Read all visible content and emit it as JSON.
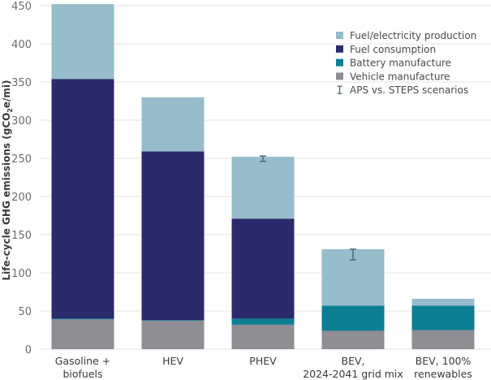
{
  "chart_data": {
    "type": "bar",
    "stacked": true,
    "title": "",
    "xlabel": "",
    "ylabel": "Life-cycle GHG emissions (gCO2e/mi)",
    "ylabel_parts": {
      "pre": "Life-cycle GHG emissions (gCO",
      "sub": "2",
      "post": "e/mi)"
    },
    "ylim": [
      0,
      450
    ],
    "yticks": [
      0,
      50,
      100,
      150,
      200,
      250,
      300,
      350,
      400,
      450
    ],
    "grid": true,
    "legend_position": "top-right",
    "categories": [
      {
        "lines": [
          "Gasoline +",
          "biofuels"
        ]
      },
      {
        "lines": [
          "HEV"
        ]
      },
      {
        "lines": [
          "PHEV"
        ]
      },
      {
        "lines": [
          "BEV,",
          "2024-2041 grid mix"
        ]
      },
      {
        "lines": [
          "BEV, 100%",
          "renewables"
        ]
      }
    ],
    "series": [
      {
        "name": "Vehicle manufacture",
        "color": "#8e8e93",
        "values": [
          39,
          37,
          32,
          24,
          25
        ]
      },
      {
        "name": "Battery manufacture",
        "color": "#0d7f93",
        "values": [
          1,
          1,
          8,
          33,
          32
        ]
      },
      {
        "name": "Fuel consumption",
        "color": "#2a2a6c",
        "values": [
          314,
          221,
          131,
          0,
          0
        ]
      },
      {
        "name": "Fuel/electricity production",
        "color": "#97bccb",
        "values": [
          98,
          71,
          81,
          74,
          9
        ]
      }
    ],
    "error_bars": {
      "name": "APS vs. STEPS scenarios",
      "color": "#4a6a78",
      "ranges": [
        null,
        null,
        [
          246,
          253
        ],
        [
          117,
          131
        ],
        null
      ]
    },
    "legend": [
      {
        "label": "Fuel/electricity production",
        "color": "#97bccb",
        "kind": "square"
      },
      {
        "label": "Fuel consumption",
        "color": "#2a2a6c",
        "kind": "square"
      },
      {
        "label": "Battery manufacture",
        "color": "#0d7f93",
        "kind": "square"
      },
      {
        "label": "Vehicle manufacture",
        "color": "#8e8e93",
        "kind": "square"
      },
      {
        "label": "APS vs. STEPS scenarios",
        "color": "#4a6a78",
        "kind": "errorbar"
      }
    ]
  }
}
